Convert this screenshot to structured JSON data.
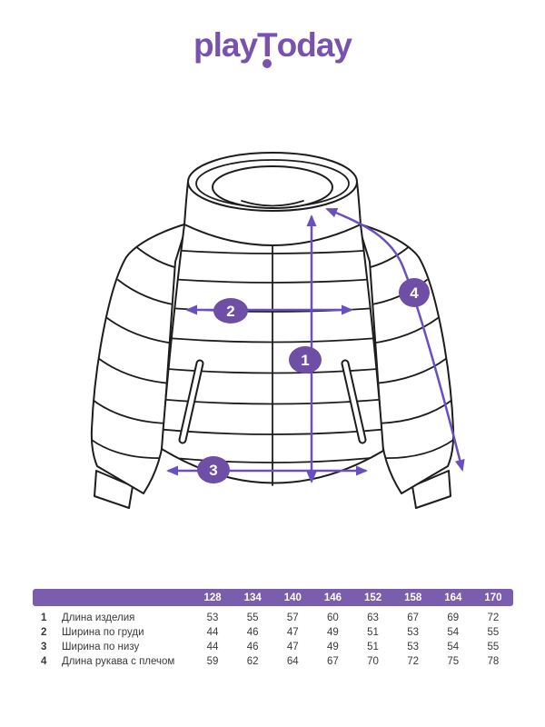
{
  "brand": {
    "logo_pre": "play",
    "logo_t": "T",
    "logo_post": "oday"
  },
  "diagram": {
    "measure_labels": [
      "1",
      "2",
      "3",
      "4"
    ]
  },
  "size_table": {
    "sizes": [
      "128",
      "134",
      "140",
      "146",
      "152",
      "158",
      "164",
      "170"
    ],
    "rows": [
      {
        "num": "1",
        "label": "Длина изделия",
        "values": [
          53,
          55,
          57,
          60,
          63,
          67,
          69,
          72
        ]
      },
      {
        "num": "2",
        "label": "Ширина по груди",
        "values": [
          44,
          46,
          47,
          49,
          51,
          53,
          54,
          55
        ]
      },
      {
        "num": "3",
        "label": "Ширина по низу",
        "values": [
          44,
          46,
          47,
          49,
          51,
          53,
          54,
          55
        ]
      },
      {
        "num": "4",
        "label": "Длина рукава с плечом",
        "values": [
          59,
          62,
          64,
          67,
          70,
          72,
          75,
          78
        ]
      }
    ]
  },
  "colors": {
    "accent": "#7852ad",
    "circle": "#6f4ea6",
    "line": "#6a4fc1",
    "header_bar": "#7a5ead",
    "ink": "#1d1d1d",
    "table_text": "#3a3a3a"
  }
}
